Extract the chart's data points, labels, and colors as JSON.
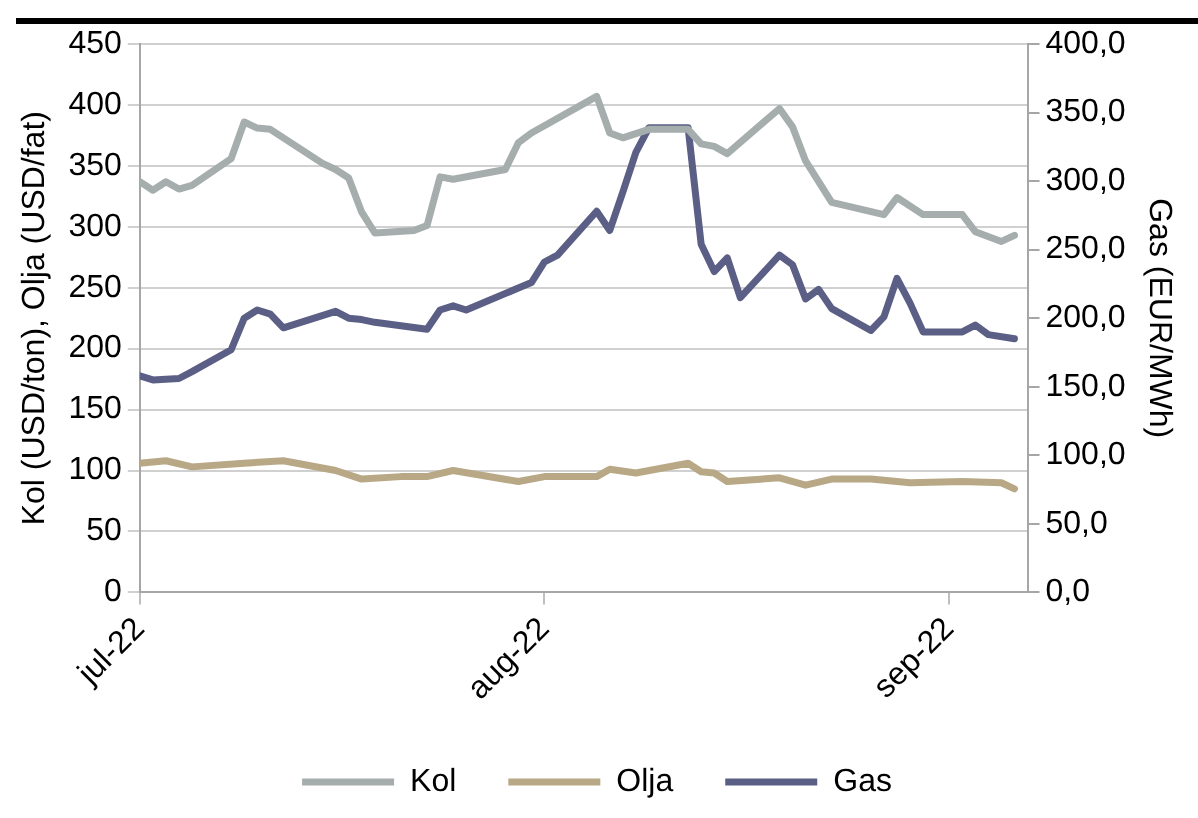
{
  "chart_data": {
    "type": "line",
    "xlabel": null,
    "ylabel": "Kol (USD/ton), Olja (USD/fat)",
    "y2label": "Gas (EUR/MWh)",
    "xlim": [
      "2022-07-01",
      "2022-09-07"
    ],
    "xticks": [
      {
        "value": "2022-07-01",
        "label": "jul-22"
      },
      {
        "value": "2022-08-01",
        "label": "aug-22"
      },
      {
        "value": "2022-09-01",
        "label": "sep-22"
      }
    ],
    "ylim": [
      0,
      450
    ],
    "yticks": [
      0,
      50,
      100,
      150,
      200,
      250,
      300,
      350,
      400,
      450
    ],
    "y2lim": [
      0,
      400
    ],
    "y2ticks": [
      {
        "value": 0,
        "label": "0,0"
      },
      {
        "value": 50,
        "label": "50,0"
      },
      {
        "value": 100,
        "label": "100,0"
      },
      {
        "value": 150,
        "label": "150,0"
      },
      {
        "value": 200,
        "label": "200,0"
      },
      {
        "value": 250,
        "label": "250,0"
      },
      {
        "value": 300,
        "label": "300,0"
      },
      {
        "value": 350,
        "label": "350,0"
      },
      {
        "value": 400,
        "label": "400,0"
      }
    ],
    "grid": "y",
    "legend": "bottom",
    "marker": "none",
    "line_style": "solid",
    "series": [
      {
        "name": "Kol",
        "color": "#a5adad",
        "x": [
          "2022-07-01",
          "2022-07-02",
          "2022-07-03",
          "2022-07-04",
          "2022-07-05",
          "2022-07-08",
          "2022-07-09",
          "2022-07-10",
          "2022-07-11",
          "2022-07-15",
          "2022-07-16",
          "2022-07-17",
          "2022-07-18",
          "2022-07-19",
          "2022-07-22",
          "2022-07-23",
          "2022-07-24",
          "2022-07-25",
          "2022-07-29",
          "2022-07-30",
          "2022-07-31",
          "2022-08-05",
          "2022-08-06",
          "2022-08-07",
          "2022-08-09",
          "2022-08-12",
          "2022-08-13",
          "2022-08-14",
          "2022-08-15",
          "2022-08-19",
          "2022-08-20",
          "2022-08-21",
          "2022-08-23",
          "2022-08-27",
          "2022-08-28",
          "2022-08-30",
          "2022-09-02",
          "2022-09-03",
          "2022-09-05",
          "2022-09-06"
        ],
        "values": [
          337,
          330,
          337,
          331,
          334,
          356,
          386,
          381,
          380,
          352,
          347,
          340,
          312,
          295,
          297,
          301,
          341,
          339,
          347,
          369,
          377,
          407,
          377,
          373,
          380,
          380,
          368,
          366,
          360,
          397,
          382,
          354,
          320,
          310,
          324,
          310,
          310,
          296,
          288,
          293
        ]
      },
      {
        "name": "Olja",
        "color": "#b8a886",
        "x": [
          "2022-07-01",
          "2022-07-03",
          "2022-07-05",
          "2022-07-09",
          "2022-07-12",
          "2022-07-16",
          "2022-07-18",
          "2022-07-21",
          "2022-07-23",
          "2022-07-25",
          "2022-07-30",
          "2022-08-01",
          "2022-08-05",
          "2022-08-06",
          "2022-08-08",
          "2022-08-12",
          "2022-08-13",
          "2022-08-14",
          "2022-08-15",
          "2022-08-19",
          "2022-08-21",
          "2022-08-23",
          "2022-08-26",
          "2022-08-29",
          "2022-09-02",
          "2022-09-05",
          "2022-09-06"
        ],
        "values": [
          106,
          108,
          103,
          106,
          108,
          100,
          93,
          95,
          95,
          100,
          91,
          95,
          95,
          101,
          98,
          106,
          99,
          98,
          91,
          94,
          88,
          93,
          93,
          90,
          91,
          90,
          85
        ]
      },
      {
        "name": "Gas",
        "color": "#5b5f85",
        "axis": "y2",
        "x": [
          "2022-07-01",
          "2022-07-02",
          "2022-07-04",
          "2022-07-05",
          "2022-07-08",
          "2022-07-09",
          "2022-07-10",
          "2022-07-11",
          "2022-07-12",
          "2022-07-16",
          "2022-07-17",
          "2022-07-18",
          "2022-07-19",
          "2022-07-23",
          "2022-07-24",
          "2022-07-25",
          "2022-07-26",
          "2022-07-30",
          "2022-07-31",
          "2022-08-01",
          "2022-08-02",
          "2022-08-05",
          "2022-08-06",
          "2022-08-07",
          "2022-08-08",
          "2022-08-09",
          "2022-08-12",
          "2022-08-13",
          "2022-08-14",
          "2022-08-15",
          "2022-08-16",
          "2022-08-19",
          "2022-08-20",
          "2022-08-21",
          "2022-08-22",
          "2022-08-23",
          "2022-08-26",
          "2022-08-27",
          "2022-08-28",
          "2022-08-29",
          "2022-08-30",
          "2022-09-02",
          "2022-09-03",
          "2022-09-04",
          "2022-09-06"
        ],
        "values": [
          158,
          155,
          156,
          161,
          177,
          200,
          206,
          203,
          193,
          205,
          200,
          199,
          197,
          192,
          206,
          209,
          206,
          222,
          226,
          241,
          246,
          278,
          264,
          292,
          321,
          339,
          339,
          254,
          234,
          244,
          215,
          246,
          239,
          214,
          221,
          207,
          191,
          201,
          229,
          211,
          190,
          190,
          195,
          188,
          185
        ]
      }
    ]
  }
}
